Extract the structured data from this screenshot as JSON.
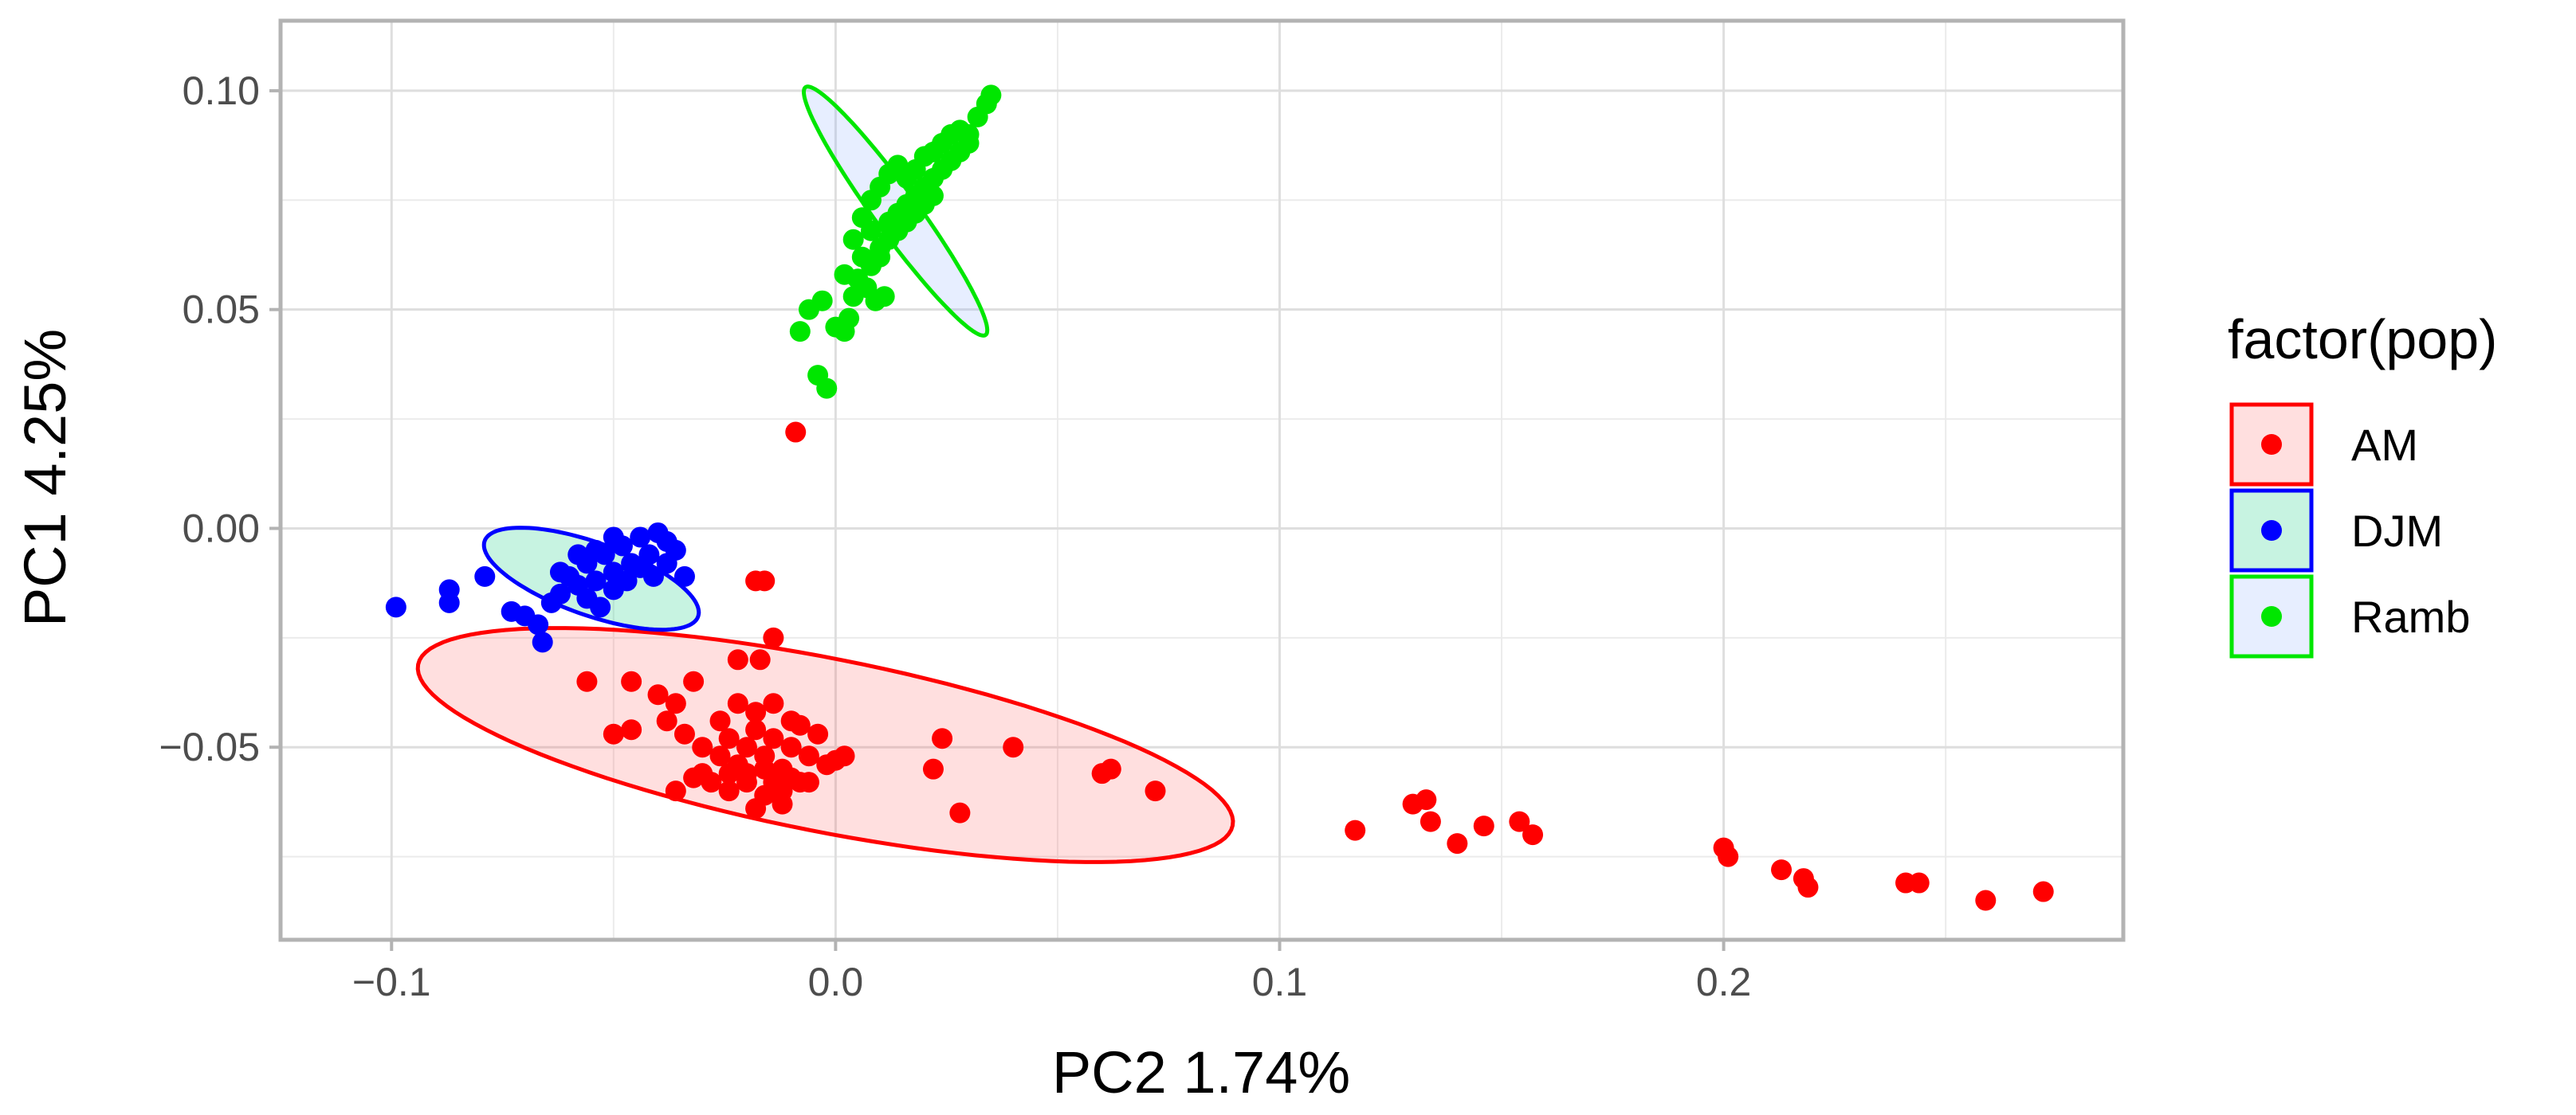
{
  "chart_data": {
    "type": "scatter",
    "xlabel": "PC2 1.74%",
    "ylabel": "PC1 4.25%",
    "xlim": [
      -0.125,
      0.29
    ],
    "ylim": [
      -0.094,
      0.116
    ],
    "x_ticks": [
      -0.1,
      0.0,
      0.1,
      0.2
    ],
    "x_tick_labels": [
      "−0.1",
      "0.0",
      "0.1",
      "0.2"
    ],
    "y_ticks": [
      0.1,
      0.05,
      0.0,
      -0.05
    ],
    "y_tick_labels": [
      "0.10",
      "0.05",
      "0.00",
      "−0.05"
    ],
    "grid": true,
    "legend": {
      "title": "factor(pop)",
      "position": "right"
    },
    "series": [
      {
        "name": "AM",
        "color": "#ff0000",
        "ellipse": {
          "cx": -0.0023,
          "cy": -0.0495,
          "rx": 0.0935,
          "ry": 0.0195,
          "angle_deg": 11.2
        },
        "points": [
          [
            -0.009,
            0.022
          ],
          [
            -0.018,
            -0.012
          ],
          [
            -0.016,
            -0.012
          ],
          [
            -0.014,
            -0.025
          ],
          [
            -0.056,
            -0.035
          ],
          [
            -0.046,
            -0.035
          ],
          [
            -0.022,
            -0.03
          ],
          [
            -0.017,
            -0.03
          ],
          [
            -0.032,
            -0.035
          ],
          [
            -0.04,
            -0.038
          ],
          [
            -0.036,
            -0.04
          ],
          [
            -0.05,
            -0.047
          ],
          [
            -0.046,
            -0.046
          ],
          [
            -0.038,
            -0.044
          ],
          [
            -0.034,
            -0.047
          ],
          [
            -0.03,
            -0.05
          ],
          [
            -0.026,
            -0.052
          ],
          [
            -0.024,
            -0.048
          ],
          [
            -0.022,
            -0.054
          ],
          [
            -0.02,
            -0.05
          ],
          [
            -0.018,
            -0.046
          ],
          [
            -0.016,
            -0.052
          ],
          [
            -0.014,
            -0.048
          ],
          [
            -0.012,
            -0.055
          ],
          [
            -0.01,
            -0.05
          ],
          [
            -0.008,
            -0.045
          ],
          [
            -0.006,
            -0.052
          ],
          [
            -0.004,
            -0.047
          ],
          [
            -0.002,
            -0.054
          ],
          [
            -0.028,
            -0.058
          ],
          [
            -0.024,
            -0.06
          ],
          [
            -0.02,
            -0.058
          ],
          [
            -0.016,
            -0.061
          ],
          [
            -0.012,
            -0.06
          ],
          [
            -0.008,
            -0.058
          ],
          [
            -0.026,
            -0.044
          ],
          [
            -0.022,
            -0.04
          ],
          [
            -0.018,
            -0.042
          ],
          [
            -0.014,
            -0.04
          ],
          [
            -0.01,
            -0.044
          ],
          [
            -0.03,
            -0.056
          ],
          [
            -0.036,
            -0.06
          ],
          [
            -0.032,
            -0.057
          ],
          [
            -0.018,
            -0.064
          ],
          [
            -0.012,
            -0.063
          ],
          [
            -0.02,
            -0.056
          ],
          [
            -0.016,
            -0.055
          ],
          [
            -0.024,
            -0.056
          ],
          [
            -0.014,
            -0.058
          ],
          [
            -0.01,
            -0.057
          ],
          [
            -0.006,
            -0.058
          ],
          [
            0.0,
            -0.053
          ],
          [
            0.002,
            -0.052
          ],
          [
            0.024,
            -0.048
          ],
          [
            0.04,
            -0.05
          ],
          [
            0.022,
            -0.055
          ],
          [
            0.028,
            -0.065
          ],
          [
            0.06,
            -0.056
          ],
          [
            0.062,
            -0.055
          ],
          [
            0.072,
            -0.06
          ],
          [
            0.117,
            -0.069
          ],
          [
            0.13,
            -0.063
          ],
          [
            0.133,
            -0.062
          ],
          [
            0.134,
            -0.067
          ],
          [
            0.14,
            -0.072
          ],
          [
            0.146,
            -0.068
          ],
          [
            0.154,
            -0.067
          ],
          [
            0.157,
            -0.07
          ],
          [
            0.2,
            -0.073
          ],
          [
            0.201,
            -0.075
          ],
          [
            0.213,
            -0.078
          ],
          [
            0.218,
            -0.08
          ],
          [
            0.219,
            -0.082
          ],
          [
            0.241,
            -0.081
          ],
          [
            0.244,
            -0.081
          ],
          [
            0.259,
            -0.085
          ],
          [
            0.272,
            -0.083
          ]
        ]
      },
      {
        "name": "DJM",
        "color": "#0000ff",
        "ellipse": {
          "cx": -0.055,
          "cy": -0.0115,
          "rx": 0.0255,
          "ry": 0.0082,
          "angle_deg": 19.5
        },
        "points": [
          [
            -0.099,
            -0.018
          ],
          [
            -0.087,
            -0.014
          ],
          [
            -0.087,
            -0.017
          ],
          [
            -0.079,
            -0.011
          ],
          [
            -0.073,
            -0.019
          ],
          [
            -0.07,
            -0.02
          ],
          [
            -0.067,
            -0.022
          ],
          [
            -0.066,
            -0.026
          ],
          [
            -0.064,
            -0.017
          ],
          [
            -0.062,
            -0.015
          ],
          [
            -0.06,
            -0.011
          ],
          [
            -0.058,
            -0.013
          ],
          [
            -0.056,
            -0.008
          ],
          [
            -0.054,
            -0.012
          ],
          [
            -0.052,
            -0.006
          ],
          [
            -0.05,
            -0.01
          ],
          [
            -0.048,
            -0.004
          ],
          [
            -0.046,
            -0.008
          ],
          [
            -0.044,
            -0.002
          ],
          [
            -0.042,
            -0.006
          ],
          [
            -0.04,
            -0.001
          ],
          [
            -0.038,
            -0.003
          ],
          [
            -0.036,
            -0.005
          ],
          [
            -0.034,
            -0.011
          ],
          [
            -0.056,
            -0.016
          ],
          [
            -0.053,
            -0.018
          ],
          [
            -0.05,
            -0.014
          ],
          [
            -0.047,
            -0.012
          ],
          [
            -0.044,
            -0.009
          ],
          [
            -0.041,
            -0.011
          ],
          [
            -0.038,
            -0.008
          ],
          [
            -0.062,
            -0.01
          ],
          [
            -0.058,
            -0.006
          ],
          [
            -0.054,
            -0.005
          ],
          [
            -0.05,
            -0.002
          ]
        ]
      },
      {
        "name": "Ramb",
        "color": "#00e600",
        "ellipse": {
          "cx": 0.0135,
          "cy": 0.0725,
          "rx": 0.0345,
          "ry": 0.0049,
          "angle_deg": 54
        },
        "points": [
          [
            -0.002,
            0.032
          ],
          [
            -0.004,
            0.035
          ],
          [
            -0.008,
            0.045
          ],
          [
            -0.006,
            0.05
          ],
          [
            -0.003,
            0.052
          ],
          [
            0.0,
            0.046
          ],
          [
            0.002,
            0.045
          ],
          [
            0.003,
            0.048
          ],
          [
            0.004,
            0.053
          ],
          [
            0.005,
            0.057
          ],
          [
            0.007,
            0.055
          ],
          [
            0.009,
            0.052
          ],
          [
            0.011,
            0.053
          ],
          [
            0.002,
            0.058
          ],
          [
            0.006,
            0.062
          ],
          [
            0.004,
            0.066
          ],
          [
            0.008,
            0.068
          ],
          [
            0.01,
            0.064
          ],
          [
            0.012,
            0.07
          ],
          [
            0.014,
            0.072
          ],
          [
            0.016,
            0.074
          ],
          [
            0.018,
            0.076
          ],
          [
            0.02,
            0.078
          ],
          [
            0.022,
            0.08
          ],
          [
            0.024,
            0.082
          ],
          [
            0.026,
            0.084
          ],
          [
            0.028,
            0.086
          ],
          [
            0.03,
            0.09
          ],
          [
            0.032,
            0.094
          ],
          [
            0.034,
            0.097
          ],
          [
            0.035,
            0.099
          ],
          [
            0.008,
            0.075
          ],
          [
            0.01,
            0.078
          ],
          [
            0.012,
            0.081
          ],
          [
            0.014,
            0.083
          ],
          [
            0.016,
            0.08
          ],
          [
            0.018,
            0.082
          ],
          [
            0.02,
            0.085
          ],
          [
            0.022,
            0.086
          ],
          [
            0.024,
            0.088
          ],
          [
            0.026,
            0.09
          ],
          [
            0.012,
            0.066
          ],
          [
            0.014,
            0.068
          ],
          [
            0.016,
            0.07
          ],
          [
            0.018,
            0.072
          ],
          [
            0.01,
            0.062
          ],
          [
            0.008,
            0.06
          ],
          [
            0.006,
            0.071
          ],
          [
            0.028,
            0.091
          ],
          [
            0.03,
            0.088
          ],
          [
            0.02,
            0.074
          ],
          [
            0.022,
            0.076
          ]
        ]
      }
    ]
  }
}
